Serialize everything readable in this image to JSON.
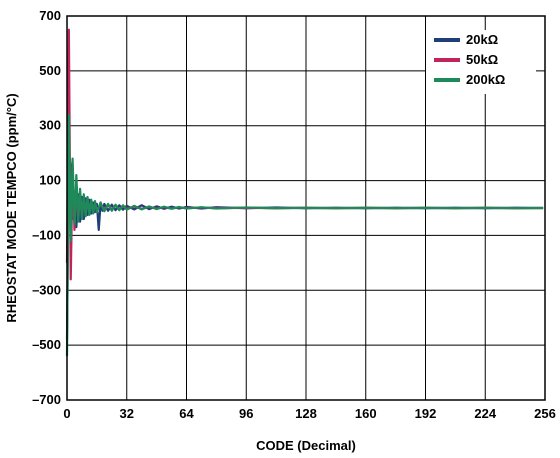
{
  "chart_data": {
    "type": "line",
    "title": "",
    "xlabel": "CODE (Decimal)",
    "ylabel": "RHEOSTAT MODE TEMPCO (ppm/°C)",
    "xlim": [
      0,
      256
    ],
    "ylim": [
      -700,
      700
    ],
    "grid": true,
    "legend_position": "top-right",
    "x_ticks": [
      0,
      32,
      64,
      96,
      128,
      160,
      192,
      224,
      256
    ],
    "x_tick_labels": [
      "0",
      "32",
      "64",
      "96",
      "128",
      "160",
      "192",
      "224",
      "256"
    ],
    "y_ticks": [
      700,
      500,
      300,
      100,
      -100,
      -300,
      -500,
      -700
    ],
    "y_tick_labels": [
      "700",
      "500",
      "300",
      "100",
      "–100",
      "–300",
      "–500",
      "–700"
    ],
    "series": [
      {
        "name": "20kΩ",
        "color": "#1f3f78",
        "points": [
          [
            0,
            -480
          ],
          [
            1,
            200
          ],
          [
            2,
            150
          ],
          [
            3,
            -40
          ],
          [
            4,
            60
          ],
          [
            5,
            -70
          ],
          [
            6,
            50
          ],
          [
            7,
            -50
          ],
          [
            8,
            40
          ],
          [
            9,
            -40
          ],
          [
            10,
            35
          ],
          [
            11,
            -25
          ],
          [
            12,
            30
          ],
          [
            13,
            -20
          ],
          [
            14,
            20
          ],
          [
            15,
            -15
          ],
          [
            16,
            15
          ],
          [
            17,
            -80
          ],
          [
            18,
            20
          ],
          [
            19,
            -10
          ],
          [
            20,
            15
          ],
          [
            22,
            -10
          ],
          [
            24,
            12
          ],
          [
            26,
            -8
          ],
          [
            28,
            10
          ],
          [
            30,
            -6
          ],
          [
            32,
            8
          ],
          [
            36,
            -5
          ],
          [
            40,
            10
          ],
          [
            44,
            -4
          ],
          [
            48,
            6
          ],
          [
            52,
            -3
          ],
          [
            56,
            5
          ],
          [
            60,
            -2
          ],
          [
            64,
            4
          ],
          [
            72,
            -2
          ],
          [
            80,
            3
          ],
          [
            96,
            -1
          ],
          [
            112,
            2
          ],
          [
            128,
            -1
          ],
          [
            144,
            1
          ],
          [
            160,
            -1
          ],
          [
            176,
            1
          ],
          [
            192,
            -1
          ],
          [
            208,
            1
          ],
          [
            224,
            -1
          ],
          [
            240,
            1
          ],
          [
            255,
            0
          ]
        ]
      },
      {
        "name": "50kΩ",
        "color": "#c0245c",
        "points": [
          [
            0,
            -200
          ],
          [
            1,
            650
          ],
          [
            2,
            -260
          ],
          [
            3,
            150
          ],
          [
            4,
            -80
          ],
          [
            5,
            90
          ],
          [
            6,
            -40
          ],
          [
            7,
            50
          ],
          [
            8,
            -30
          ],
          [
            9,
            40
          ],
          [
            10,
            -20
          ],
          [
            11,
            30
          ],
          [
            12,
            -15
          ],
          [
            13,
            20
          ],
          [
            14,
            -10
          ],
          [
            15,
            15
          ],
          [
            16,
            -8
          ],
          [
            18,
            12
          ],
          [
            20,
            -6
          ],
          [
            22,
            10
          ],
          [
            24,
            -5
          ],
          [
            26,
            8
          ],
          [
            28,
            -4
          ],
          [
            30,
            6
          ],
          [
            32,
            -3
          ],
          [
            36,
            5
          ],
          [
            40,
            -3
          ],
          [
            44,
            4
          ],
          [
            48,
            -2
          ],
          [
            52,
            3
          ],
          [
            56,
            -2
          ],
          [
            60,
            3
          ],
          [
            64,
            -1
          ],
          [
            72,
            2
          ],
          [
            80,
            -1
          ],
          [
            96,
            1
          ],
          [
            112,
            -1
          ],
          [
            128,
            1
          ],
          [
            144,
            -1
          ],
          [
            160,
            1
          ],
          [
            176,
            -1
          ],
          [
            192,
            1
          ],
          [
            208,
            -1
          ],
          [
            224,
            1
          ],
          [
            240,
            -1
          ],
          [
            255,
            0
          ]
        ]
      },
      {
        "name": "200kΩ",
        "color": "#1e8a5a",
        "points": [
          [
            0,
            -540
          ],
          [
            1,
            340
          ],
          [
            2,
            -120
          ],
          [
            3,
            180
          ],
          [
            4,
            -60
          ],
          [
            5,
            120
          ],
          [
            6,
            -50
          ],
          [
            7,
            70
          ],
          [
            8,
            -40
          ],
          [
            9,
            50
          ],
          [
            10,
            -30
          ],
          [
            11,
            40
          ],
          [
            12,
            -25
          ],
          [
            13,
            30
          ],
          [
            14,
            -20
          ],
          [
            15,
            25
          ],
          [
            16,
            -15
          ],
          [
            18,
            20
          ],
          [
            20,
            -12
          ],
          [
            22,
            15
          ],
          [
            24,
            -10
          ],
          [
            26,
            12
          ],
          [
            28,
            -8
          ],
          [
            30,
            10
          ],
          [
            32,
            -6
          ],
          [
            36,
            8
          ],
          [
            40,
            -5
          ],
          [
            44,
            6
          ],
          [
            48,
            -4
          ],
          [
            52,
            5
          ],
          [
            56,
            -3
          ],
          [
            60,
            4
          ],
          [
            64,
            -2
          ],
          [
            72,
            3
          ],
          [
            80,
            -2
          ],
          [
            96,
            2
          ],
          [
            112,
            -1
          ],
          [
            128,
            1
          ],
          [
            144,
            -1
          ],
          [
            160,
            1
          ],
          [
            176,
            -1
          ],
          [
            192,
            1
          ],
          [
            208,
            -1
          ],
          [
            224,
            1
          ],
          [
            240,
            -1
          ],
          [
            255,
            0
          ]
        ]
      }
    ]
  }
}
